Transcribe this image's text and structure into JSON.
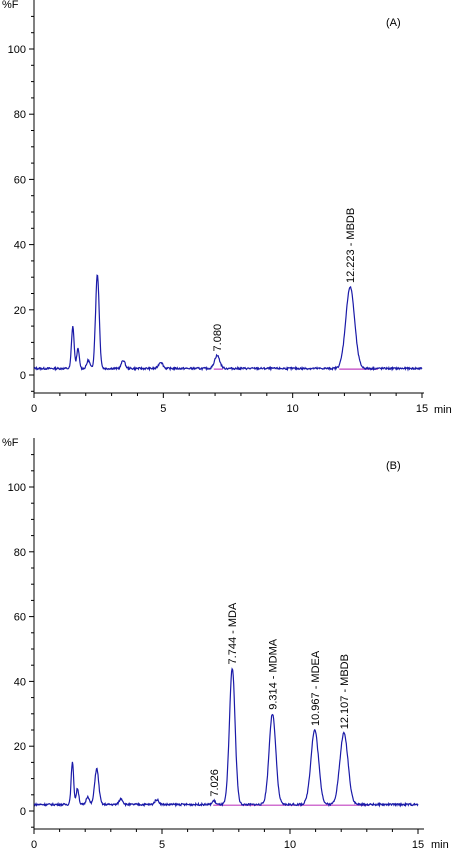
{
  "chart_data": [
    {
      "type": "line",
      "panel_label": "(A)",
      "ylabel": "%F",
      "xlabel": "min",
      "xlim": [
        0,
        15
      ],
      "ylim": [
        -6,
        110
      ],
      "x_ticks": [
        "0",
        "5",
        "10",
        "15"
      ],
      "y_ticks": [
        "0",
        "20",
        "40",
        "60",
        "80",
        "100"
      ],
      "peaks": [
        {
          "rt": 1.5,
          "height": 13,
          "width": 0.05
        },
        {
          "rt": 1.7,
          "height": 6,
          "width": 0.05
        },
        {
          "rt": 2.1,
          "height": 2.5,
          "width": 0.06
        },
        {
          "rt": 2.45,
          "height": 29,
          "width": 0.07
        },
        {
          "rt": 3.45,
          "height": 2.5,
          "width": 0.07
        },
        {
          "rt": 4.9,
          "height": 2,
          "width": 0.08
        },
        {
          "rt": 7.08,
          "height": 4,
          "width": 0.1
        },
        {
          "rt": 12.223,
          "height": 25,
          "width": 0.17
        }
      ],
      "annotations": [
        {
          "rt": 7.08,
          "label": "7.080"
        },
        {
          "rt": 12.223,
          "label": "12.223 - MBDB"
        }
      ],
      "baselines": [
        [
          6.95,
          7.3
        ],
        [
          11.8,
          13.3
        ]
      ],
      "series": [
        {
          "x": [
            0,
            1.2,
            1.5,
            1.7,
            2.1,
            2.45,
            3.0,
            3.45,
            4.9,
            6.5,
            7.08,
            8.0,
            10.0,
            11.9,
            12.223,
            12.6,
            14.0,
            15.0
          ],
          "values": [
            2,
            2,
            15,
            8,
            4.5,
            31,
            2.2,
            4.5,
            4,
            2,
            6,
            2,
            2,
            2.2,
            27,
            3,
            2,
            2
          ]
        }
      ]
    },
    {
      "type": "line",
      "panel_label": "(B)",
      "ylabel": "%F",
      "xlabel": "min",
      "xlim": [
        0,
        15
      ],
      "ylim": [
        -6,
        110
      ],
      "x_ticks": [
        "0",
        "5",
        "10",
        "15"
      ],
      "y_ticks": [
        "0",
        "20",
        "40",
        "60",
        "80",
        "100"
      ],
      "peaks": [
        {
          "rt": 1.5,
          "height": 13,
          "width": 0.05
        },
        {
          "rt": 1.7,
          "height": 5,
          "width": 0.05
        },
        {
          "rt": 2.1,
          "height": 2.5,
          "width": 0.06
        },
        {
          "rt": 2.45,
          "height": 11,
          "width": 0.08
        },
        {
          "rt": 3.4,
          "height": 1.8,
          "width": 0.07
        },
        {
          "rt": 4.8,
          "height": 1.5,
          "width": 0.08
        },
        {
          "rt": 7.026,
          "height": 1.2,
          "width": 0.06
        },
        {
          "rt": 7.744,
          "height": 42,
          "width": 0.11
        },
        {
          "rt": 9.314,
          "height": 28,
          "width": 0.13
        },
        {
          "rt": 10.967,
          "height": 23,
          "width": 0.15
        },
        {
          "rt": 12.107,
          "height": 22,
          "width": 0.16
        }
      ],
      "annotations": [
        {
          "rt": 7.026,
          "label": "7.026"
        },
        {
          "rt": 7.744,
          "label": "7.744 - MDA"
        },
        {
          "rt": 9.314,
          "label": "9.314 - MDMA"
        },
        {
          "rt": 10.967,
          "label": "10.967 - MDEA"
        },
        {
          "rt": 12.107,
          "label": "12.107 - MBDB"
        }
      ],
      "baselines": [
        [
          7.0,
          13.1
        ]
      ],
      "series": [
        {
          "x": [
            0,
            1.2,
            1.5,
            1.7,
            2.1,
            2.45,
            3.0,
            3.4,
            4.8,
            6.5,
            7.026,
            7.744,
            8.5,
            9.314,
            10.0,
            10.967,
            11.5,
            12.107,
            13.0,
            15.0
          ],
          "values": [
            2,
            2,
            15,
            7,
            4.5,
            13,
            2.2,
            3.8,
            3.5,
            2,
            3.2,
            44,
            3,
            30,
            3,
            25,
            3,
            24,
            2.5,
            2
          ]
        }
      ]
    }
  ]
}
